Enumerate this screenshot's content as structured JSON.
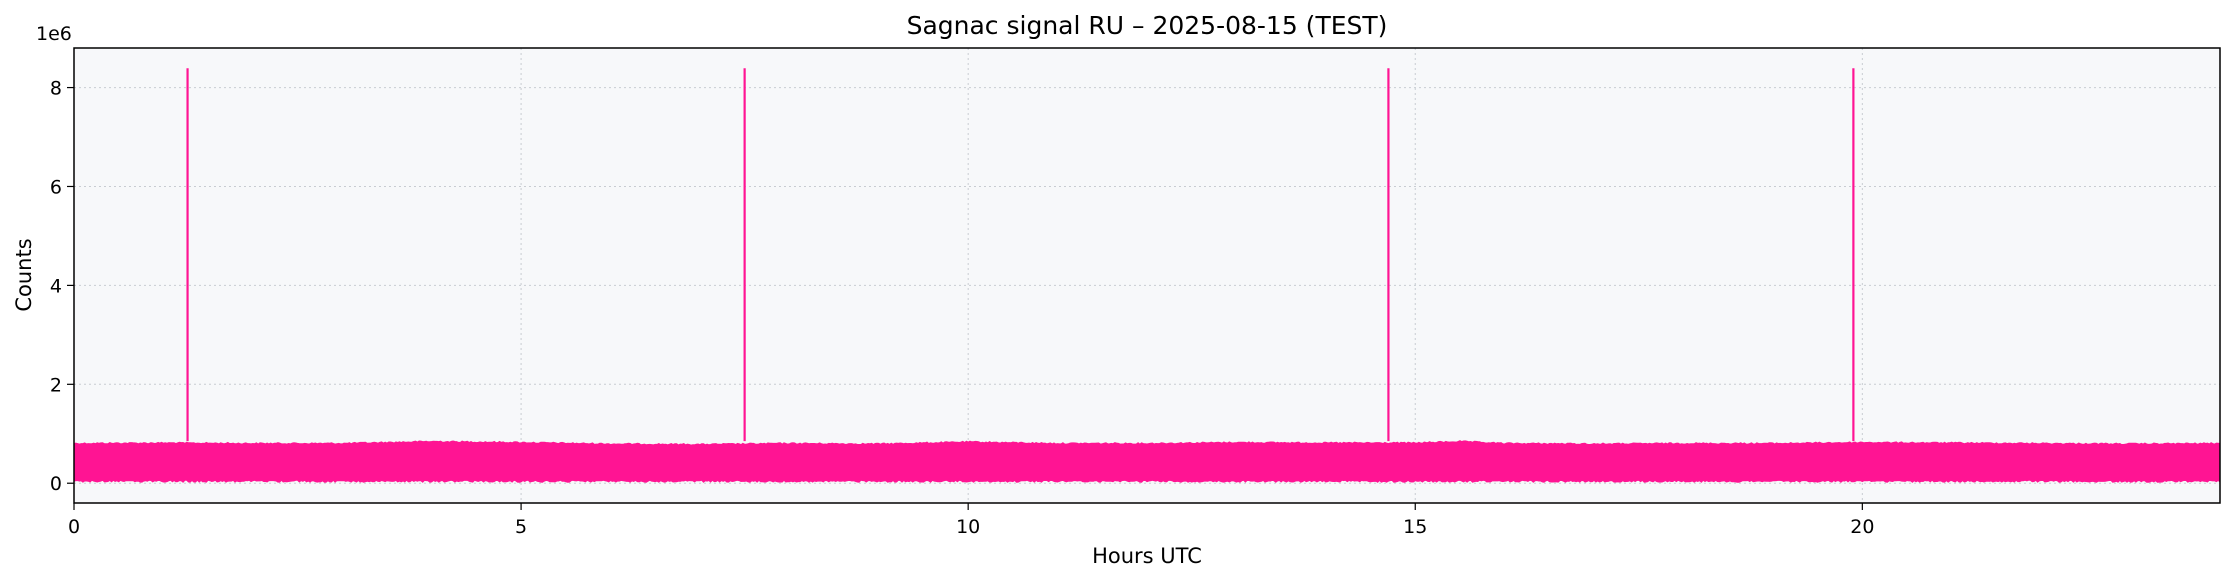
{
  "chart_data": {
    "type": "line",
    "title": "Sagnac signal RU – 2025-08-15 (TEST)",
    "xlabel": "Hours UTC",
    "ylabel": "Counts",
    "y_offset_label": "1e6",
    "xlim": [
      0,
      24
    ],
    "ylim": [
      -0.4,
      8.8
    ],
    "y_scale_note": "y values in units of 1e6 counts",
    "x_ticks": [
      0,
      5,
      10,
      15,
      20
    ],
    "x_tick_labels": [
      "0",
      "5",
      "10",
      "15",
      "20"
    ],
    "y_ticks": [
      0,
      2,
      4,
      6,
      8
    ],
    "y_tick_labels": [
      "0",
      "2",
      "4",
      "6",
      "8"
    ],
    "grid": true,
    "legend": "none",
    "series": [
      {
        "noise_band": {
          "low": 0.02,
          "high": 0.85
        },
        "band_upper_edge": [
          [
            0,
            0.82
          ],
          [
            1,
            0.83
          ],
          [
            2,
            0.82
          ],
          [
            3,
            0.82
          ],
          [
            4,
            0.86
          ],
          [
            5,
            0.84
          ],
          [
            6,
            0.81
          ],
          [
            7,
            0.8
          ],
          [
            8,
            0.82
          ],
          [
            9,
            0.81
          ],
          [
            10,
            0.85
          ],
          [
            11,
            0.82
          ],
          [
            12,
            0.82
          ],
          [
            13,
            0.84
          ],
          [
            14,
            0.83
          ],
          [
            15,
            0.83
          ],
          [
            15.5,
            0.86
          ],
          [
            16,
            0.82
          ],
          [
            17,
            0.81
          ],
          [
            18,
            0.82
          ],
          [
            19,
            0.82
          ],
          [
            20,
            0.84
          ],
          [
            21,
            0.83
          ],
          [
            22,
            0.82
          ],
          [
            23,
            0.81
          ],
          [
            24,
            0.82
          ]
        ],
        "spikes": [
          {
            "x": 1.27,
            "y": 8.39
          },
          {
            "x": 7.5,
            "y": 8.39
          },
          {
            "x": 14.7,
            "y": 8.39
          },
          {
            "x": 19.9,
            "y": 8.39
          }
        ]
      }
    ]
  },
  "colors": {
    "series": "#ff1493",
    "plot_background": "#f7f8fa",
    "grid": "#c8ccd2",
    "axis": "#000000"
  }
}
